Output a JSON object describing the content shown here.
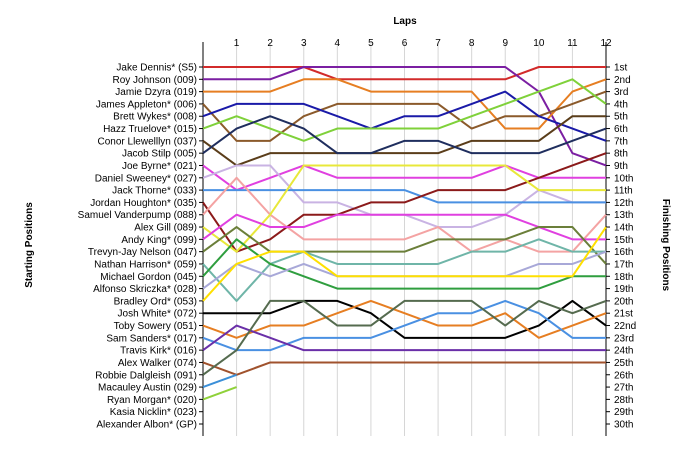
{
  "chart_data": {
    "type": "line",
    "title": "Laps",
    "ylabel_left": "Starting Positions",
    "ylabel_right": "Finishing Positions",
    "laps": [
      1,
      2,
      3,
      4,
      5,
      6,
      7,
      8,
      9,
      10,
      11,
      12
    ],
    "finish_labels": [
      "1st",
      "2nd",
      "3rd",
      "4th",
      "5th",
      "6th",
      "7th",
      "8th",
      "9th",
      "10th",
      "11th",
      "12th",
      "13th",
      "14th",
      "15th",
      "16th",
      "17th",
      "18th",
      "19th",
      "20th",
      "21st",
      "22nd",
      "23rd",
      "24th",
      "25th",
      "26th",
      "27th",
      "28th",
      "29th",
      "30th"
    ],
    "grid": true,
    "series": [
      {
        "name": "Jake Dennis* (S5)",
        "start": 1,
        "color": "#d22b2b",
        "positions": [
          1,
          1,
          1,
          2,
          2,
          2,
          2,
          2,
          2,
          1,
          1,
          1
        ]
      },
      {
        "name": "Roy Johnson (009)",
        "start": 2,
        "color": "#7b1fa2",
        "positions": [
          2,
          2,
          1,
          1,
          1,
          1,
          1,
          1,
          1,
          3,
          8,
          9
        ]
      },
      {
        "name": "Jamie Dzyra (019)",
        "start": 3,
        "color": "#e67e22",
        "positions": [
          3,
          3,
          2,
          2,
          3,
          3,
          3,
          3,
          6,
          6,
          3,
          2
        ]
      },
      {
        "name": "James Appleton* (006)",
        "start": 4,
        "color": "#8b5a2b",
        "positions": [
          7,
          7,
          5,
          4,
          4,
          4,
          4,
          6,
          5,
          5,
          4,
          3
        ]
      },
      {
        "name": "Brett Wykes* (008)",
        "start": 5,
        "color": "#1a1aa8",
        "positions": [
          4,
          4,
          4,
          5,
          6,
          5,
          5,
          4,
          3,
          5,
          6,
          7
        ]
      },
      {
        "name": "Hazz Truelove* (015)",
        "start": 6,
        "color": "#7fd13a",
        "positions": [
          5,
          6,
          7,
          6,
          6,
          6,
          6,
          5,
          4,
          3,
          2,
          4
        ]
      },
      {
        "name": "Conor Llewelllyn (037)",
        "start": 7,
        "color": "#5a3d1a",
        "positions": [
          9,
          8,
          8,
          8,
          8,
          8,
          8,
          7,
          7,
          7,
          5,
          5
        ]
      },
      {
        "name": "Jacob Stilp (005)",
        "start": 8,
        "color": "#1f2e5e",
        "positions": [
          6,
          5,
          6,
          8,
          8,
          7,
          7,
          8,
          8,
          8,
          7,
          6
        ]
      },
      {
        "name": "Joe Byrne* (021)",
        "start": 9,
        "color": "#e040e0",
        "positions": [
          11,
          10,
          9,
          10,
          10,
          10,
          10,
          10,
          9,
          10,
          10,
          10
        ]
      },
      {
        "name": "Daniel Sweeney* (027)",
        "start": 10,
        "color": "#c9b3e3",
        "positions": [
          9,
          9,
          12,
          12,
          13,
          13,
          14,
          14,
          13,
          11,
          12,
          12
        ]
      },
      {
        "name": "Jack Thorne* (033)",
        "start": 11,
        "color": "#4a90e2",
        "positions": [
          11,
          11,
          11,
          11,
          11,
          11,
          12,
          12,
          12,
          12,
          12,
          12
        ]
      },
      {
        "name": "Jordan Houghton* (035)",
        "start": 12,
        "color": "#8b1a1a",
        "positions": [
          16,
          15,
          13,
          13,
          12,
          12,
          11,
          11,
          11,
          10,
          9,
          8
        ]
      },
      {
        "name": "Samuel Vanderpump (088)",
        "start": 13,
        "color": "#f4a3a3",
        "positions": [
          10,
          13,
          15,
          15,
          15,
          15,
          14,
          16,
          15,
          16,
          16,
          13
        ]
      },
      {
        "name": "Alex Gill (089)",
        "start": 14,
        "color": "#e8e83a",
        "positions": [
          16,
          13,
          9,
          9,
          9,
          9,
          9,
          9,
          9,
          11,
          11,
          11
        ]
      },
      {
        "name": "Andy King* (099)",
        "start": 15,
        "color": "#e040e0",
        "positions": [
          13,
          14,
          14,
          13,
          13,
          13,
          13,
          13,
          13,
          14,
          15,
          15
        ]
      },
      {
        "name": "Trevyn-Jay Nelson (047)",
        "start": 16,
        "color": "#6b7f3a",
        "positions": [
          14,
          16,
          16,
          16,
          16,
          16,
          15,
          15,
          15,
          14,
          14,
          17
        ]
      },
      {
        "name": "Nathan Harrison* (059)",
        "start": 17,
        "color": "#6fb5a8",
        "positions": [
          20,
          17,
          16,
          17,
          17,
          17,
          17,
          16,
          16,
          15,
          16,
          16
        ]
      },
      {
        "name": "Michael Gordon (045)",
        "start": 18,
        "color": "#2f9e3f",
        "positions": [
          15,
          17,
          18,
          19,
          19,
          19,
          19,
          19,
          19,
          19,
          18,
          18
        ]
      },
      {
        "name": "Alfonso Skriczka* (028)",
        "start": 19,
        "color": "#a8a8d8",
        "positions": [
          17,
          18,
          17,
          18,
          18,
          18,
          18,
          18,
          18,
          17,
          17,
          16
        ]
      },
      {
        "name": "Bradley Ord* (053)",
        "start": 20,
        "color": "#ffe000",
        "positions": [
          17,
          16,
          16,
          18,
          18,
          18,
          18,
          18,
          18,
          18,
          18,
          14
        ]
      },
      {
        "name": "Josh White* (072)",
        "start": 21,
        "color": "#000000",
        "positions": [
          21,
          21,
          20,
          20,
          21,
          23,
          23,
          23,
          23,
          22,
          20,
          22
        ]
      },
      {
        "name": "Toby Sowery (051)",
        "start": 22,
        "color": "#e67e22",
        "positions": [
          23,
          22,
          22,
          21,
          20,
          21,
          22,
          22,
          21,
          23,
          22,
          21
        ]
      },
      {
        "name": "Sam Sanders* (017)",
        "start": 23,
        "color": "#4a90e2",
        "positions": [
          24,
          24,
          23,
          23,
          23,
          22,
          21,
          21,
          20,
          21,
          23,
          23
        ]
      },
      {
        "name": "Travis Kirk* (016)",
        "start": 24,
        "color": "#6a2fa8",
        "positions": [
          22,
          23,
          24,
          24,
          24,
          24,
          24,
          24,
          24,
          24,
          24,
          24
        ]
      },
      {
        "name": "Alex Walker (074)",
        "start": 25,
        "color": "#a0522d",
        "positions": [
          26,
          25,
          25,
          25,
          25,
          25,
          25,
          25,
          25,
          25,
          25,
          25
        ]
      },
      {
        "name": "Robbie Dalgleish (091)",
        "start": 26,
        "color": "#556b4f",
        "positions": [
          24,
          20,
          20,
          22,
          22,
          20,
          20,
          20,
          22,
          20,
          21,
          20
        ]
      },
      {
        "name": "Macauley Austin (029)",
        "start": 27,
        "color": "#3b8fd8",
        "positions": [
          26
        ]
      },
      {
        "name": "Ryan Morgan* (020)",
        "start": 28,
        "color": "#8fd13a",
        "positions": [
          27
        ]
      }
    ]
  },
  "axes": {
    "left_labels": [
      "Jake Dennis* (S5)",
      "Roy Johnson (009)",
      "Jamie Dzyra (019)",
      "James Appleton* (006)",
      "Brett Wykes* (008)",
      "Hazz Truelove* (015)",
      "Conor Llewelllyn (037)",
      "Jacob Stilp (005)",
      "Joe Byrne* (021)",
      "Daniel Sweeney* (027)",
      "Jack Thorne* (033)",
      "Jordan Houghton* (035)",
      "Samuel Vanderpump (088)",
      "Alex Gill (089)",
      "Andy King* (099)",
      "Trevyn-Jay Nelson (047)",
      "Nathan Harrison* (059)",
      "Michael Gordon (045)",
      "Alfonso Skriczka* (028)",
      "Bradley Ord* (053)",
      "Josh White* (072)",
      "Toby Sowery (051)",
      "Sam Sanders* (017)",
      "Travis Kirk* (016)",
      "Alex Walker (074)",
      "Robbie Dalgleish (091)",
      "Macauley Austin (029)",
      "Ryan Morgan* (020)",
      "Kasia Nicklin* (023)",
      "Alexander Albon* (GP)"
    ]
  }
}
